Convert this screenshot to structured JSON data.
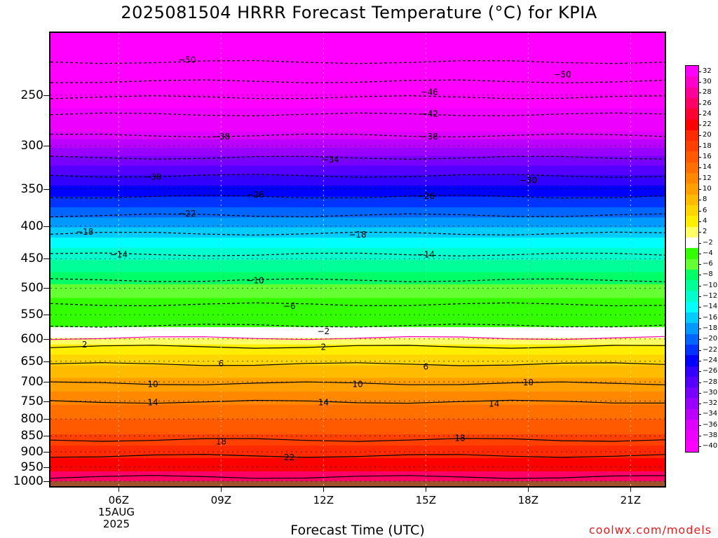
{
  "title": "2025081504 HRRR Forecast Temperature (°C) for KPIA",
  "footer": "coolwx.com/models",
  "chart_data": {
    "type": "heatmap",
    "title": "2025081504 HRRR Forecast Temperature (°C) for KPIA",
    "xlabel": "Forecast Time (UTC)",
    "ylabel": "",
    "x_tick_labels": [
      "06Z",
      "09Z",
      "12Z",
      "15Z",
      "18Z",
      "21Z"
    ],
    "x_ticks_hours": [
      6,
      9,
      12,
      15,
      18,
      21
    ],
    "x_range_hours": [
      4,
      22
    ],
    "date_label": [
      "15AUG",
      "2025"
    ],
    "y_tick_labels": [
      "250",
      "300",
      "350",
      "400",
      "450",
      "500",
      "550",
      "600",
      "650",
      "700",
      "750",
      "800",
      "850",
      "900",
      "950",
      "1000"
    ],
    "y_range_hPa": [
      1018,
      200
    ],
    "y_scale": "log",
    "ground_color": "#a0522d",
    "colorbar": {
      "labels": [
        "32",
        "30",
        "28",
        "26",
        "24",
        "22",
        "20",
        "18",
        "16",
        "14",
        "12",
        "10",
        "8",
        "6",
        "4",
        "2",
        "−2",
        "−4",
        "−6",
        "−8",
        "−10",
        "−12",
        "−14",
        "−16",
        "−18",
        "−20",
        "−22",
        "−24",
        "−26",
        "−28",
        "−30",
        "−32",
        "−34",
        "−36",
        "−38",
        "−40"
      ],
      "colors": [
        "#ff00ff",
        "#ff00cc",
        "#ff0099",
        "#ff0066",
        "#ff0033",
        "#ff0000",
        "#ff2a00",
        "#ff4000",
        "#ff5a00",
        "#ff7000",
        "#ff8800",
        "#ffa000",
        "#ffbb00",
        "#ffd600",
        "#ffee00",
        "#ffff66",
        "#ffffff",
        "#33ff00",
        "#66ff33",
        "#00ff66",
        "#00ff99",
        "#00ffcc",
        "#00ffff",
        "#00ccff",
        "#0099ff",
        "#0066ff",
        "#0033ff",
        "#0000ff",
        "#3300ff",
        "#5500ff",
        "#7700ff",
        "#9900ff",
        "#bb00ff",
        "#dd00ff",
        "#ee00ff",
        "#ff00ff"
      ]
    },
    "isotherm_labels": [
      {
        "hour": 8.0,
        "p": 220,
        "label": "−50"
      },
      {
        "hour": 19.0,
        "p": 232,
        "label": "−50"
      },
      {
        "hour": 15.1,
        "p": 247,
        "label": "−46"
      },
      {
        "hour": 15.1,
        "p": 267,
        "label": "−42"
      },
      {
        "hour": 9.0,
        "p": 290,
        "label": "−38"
      },
      {
        "hour": 15.1,
        "p": 290,
        "label": "−38"
      },
      {
        "hour": 12.2,
        "p": 315,
        "label": "−34"
      },
      {
        "hour": 7.0,
        "p": 335,
        "label": "−30"
      },
      {
        "hour": 18.0,
        "p": 339,
        "label": "−30"
      },
      {
        "hour": 10.0,
        "p": 357,
        "label": "−26"
      },
      {
        "hour": 15.0,
        "p": 359,
        "label": "−26"
      },
      {
        "hour": 8.0,
        "p": 382,
        "label": "−22"
      },
      {
        "hour": 5.0,
        "p": 408,
        "label": "−18"
      },
      {
        "hour": 13.0,
        "p": 412,
        "label": "−18"
      },
      {
        "hour": 6.0,
        "p": 443,
        "label": "−14"
      },
      {
        "hour": 15.0,
        "p": 443,
        "label": "−14"
      },
      {
        "hour": 10.0,
        "p": 486,
        "label": "−10"
      },
      {
        "hour": 11.0,
        "p": 533,
        "label": "−6"
      },
      {
        "hour": 12.0,
        "p": 583,
        "label": "−2"
      },
      {
        "hour": 5.0,
        "p": 612,
        "label": "2"
      },
      {
        "hour": 12.0,
        "p": 617,
        "label": "2"
      },
      {
        "hour": 9.0,
        "p": 655,
        "label": "6"
      },
      {
        "hour": 15.0,
        "p": 662,
        "label": "6"
      },
      {
        "hour": 7.0,
        "p": 705,
        "label": "10"
      },
      {
        "hour": 13.0,
        "p": 705,
        "label": "10"
      },
      {
        "hour": 18.0,
        "p": 701,
        "label": "10"
      },
      {
        "hour": 7.0,
        "p": 753,
        "label": "14"
      },
      {
        "hour": 12.0,
        "p": 753,
        "label": "14"
      },
      {
        "hour": 17.0,
        "p": 757,
        "label": "14"
      },
      {
        "hour": 9.0,
        "p": 867,
        "label": "18"
      },
      {
        "hour": 16.0,
        "p": 856,
        "label": "18"
      },
      {
        "hour": 11.0,
        "p": 917,
        "label": "22"
      }
    ]
  }
}
